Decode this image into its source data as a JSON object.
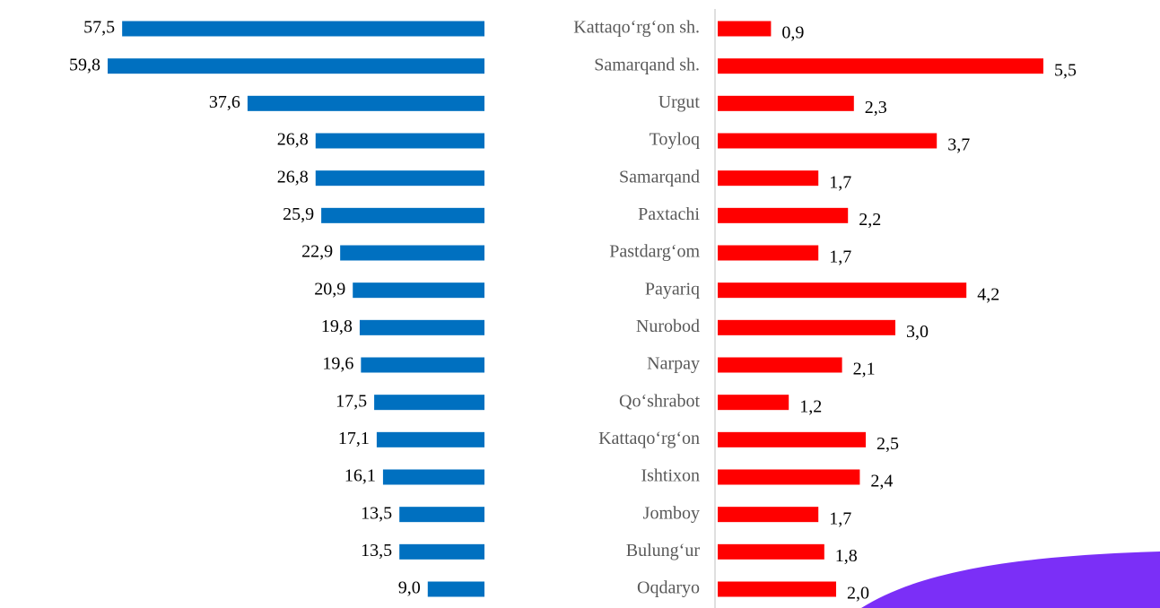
{
  "chart_data": {
    "type": "butterfly",
    "categories": [
      "Kattaqo‘rg‘on sh.",
      "Samarqand sh.",
      "Urgut",
      "Toyloq",
      "Samarqand",
      "Paxtachi",
      "Pastdarg‘om",
      "Payariq",
      "Nurobod",
      "Narpay",
      "Qo‘shrabot",
      "Kattaqo‘rg‘on",
      "Ishtixon",
      "Jomboy",
      "Bulung‘ur",
      "Oqdaryo"
    ],
    "series": [
      {
        "color": "#0070c0",
        "values": [
          57.5,
          59.8,
          37.6,
          26.8,
          26.8,
          25.9,
          22.9,
          20.9,
          19.8,
          19.6,
          17.5,
          17.1,
          16.1,
          13.5,
          13.5,
          9.0
        ],
        "value_labels": [
          "57,5",
          "59,8",
          "37,6",
          "26,8",
          "26,8",
          "25,9",
          "22,9",
          "20,9",
          "19,8",
          "19,6",
          "17,5",
          "17,1",
          "16,1",
          "13,5",
          "13,5",
          "9,0"
        ]
      },
      {
        "color": "#ff0000",
        "values": [
          0.9,
          5.5,
          2.3,
          3.7,
          1.7,
          2.2,
          1.7,
          4.2,
          3.0,
          2.1,
          1.2,
          2.5,
          2.4,
          1.7,
          1.8,
          2.0
        ],
        "value_labels": [
          "0,9",
          "5,5",
          "2,3",
          "3,7",
          "1,7",
          "2,2",
          "1,7",
          "4,2",
          "3,0",
          "2,1",
          "1,2",
          "2,5",
          "2,4",
          "1,7",
          "1,8",
          "2,0"
        ]
      }
    ]
  }
}
